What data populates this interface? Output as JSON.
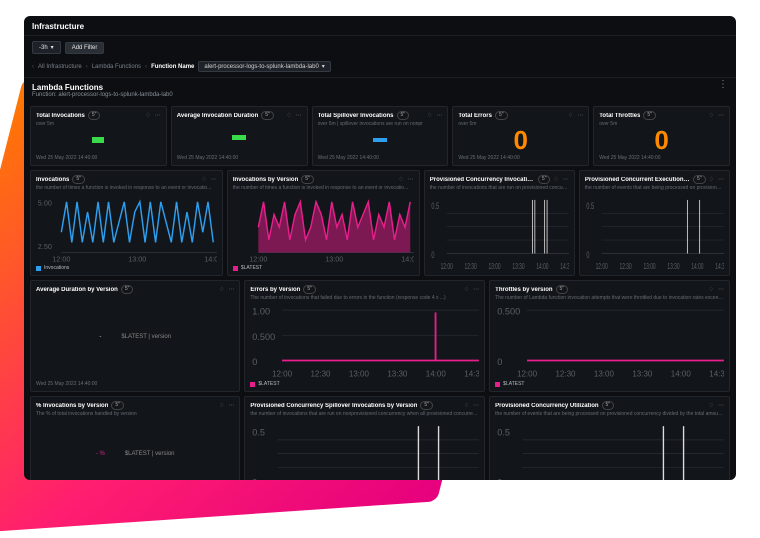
{
  "page": {
    "title": "Infrastructure",
    "time_range": "-3h",
    "add_filter": "Add Filter"
  },
  "breadcrumb": {
    "all": "All Infrastructure",
    "lambda": "Lambda Functions",
    "label": "Function Name",
    "value": "alert-processor-logs-to-splunk-lambda-lab0"
  },
  "header": {
    "title": "Lambda Functions",
    "subtitle": "Function: alert-processor-logs-to-splunk-lambda-lab0"
  },
  "timestamp": "Wed 25 May 2022 14:40:00",
  "colors": {
    "green": "#3adb4a",
    "blue": "#2e9fef",
    "magenta": "#e81e8c",
    "orange": "#ff8a00",
    "grid": "#2a2f36",
    "axis_text": "#5a6068"
  },
  "row1": [
    {
      "title": "Total Invocations",
      "pill": "5\"",
      "sub": "over 5m",
      "viz": "green-bar",
      "footer_ts": true
    },
    {
      "title": "Average Invocation Duration",
      "pill": "5\"",
      "sub": "",
      "viz": "green-bar2",
      "footer_ts": true
    },
    {
      "title": "Total Spillover Invocations",
      "pill": "5\"",
      "sub": "over 5m | spillover invocations are run on nonpr",
      "viz": "blue-bar",
      "footer_ts": true
    },
    {
      "title": "Total Errors",
      "pill": "5\"",
      "sub": "over 5m",
      "viz": "bignum",
      "value": "0",
      "color": "#ff8a00",
      "footer_ts": true
    },
    {
      "title": "Total Throttles",
      "pill": "5\"",
      "sub": "over 5m",
      "viz": "bignum",
      "value": "0",
      "color": "#ff8a00",
      "footer_ts": true
    }
  ],
  "row2": {
    "left": {
      "title": "Invocations",
      "pill": "5\"",
      "sub": "the number of times a function is invoked in response to an event or invocatio...",
      "type": "line",
      "y_ticks": [
        "5.00",
        "2.50"
      ],
      "x_ticks": [
        "12:00",
        "13:00",
        "14:00"
      ],
      "series_color": "#2e9fef",
      "legend": "Invocations",
      "points": [
        2,
        5,
        1,
        5,
        1,
        4,
        1,
        5,
        1,
        5,
        1,
        3,
        5,
        1,
        4,
        5,
        1,
        5,
        1,
        5,
        3,
        1,
        5,
        1,
        4,
        1,
        5,
        2,
        5,
        1
      ],
      "footer_ts": true
    },
    "midleft": {
      "title": "Invocations by Version",
      "pill": "5\"",
      "sub": "the number of times a function is invoked in response to an event or invocatio...",
      "type": "area",
      "x_ticks": [
        "12:00",
        "13:00",
        "14:00"
      ],
      "series_color": "#e81e8c",
      "legend": "$LATEST",
      "points": [
        2,
        4,
        1,
        3,
        2,
        4,
        1,
        3,
        4,
        1,
        2,
        4,
        3,
        1,
        4,
        2,
        3,
        1,
        4,
        2,
        3,
        4,
        1,
        3,
        2,
        4,
        1,
        3,
        2,
        4
      ],
      "footer_ts": true
    },
    "mid": {
      "title": "Provisioned Concurrency Invocations by Version",
      "pill": "5\"",
      "sub": "the number of invocations that are run on provisioned concurrency lambda f...",
      "type": "sparse",
      "y_ticks": [
        "0.5",
        "0"
      ],
      "x_ticks": [
        "12:00",
        "12:30",
        "13:00",
        "13:30",
        "14:00",
        "14:30"
      ],
      "spikes": [
        70,
        72,
        80,
        82
      ],
      "footer_ts": false
    },
    "right": {
      "title": "Provisioned Concurrent Executions by Version",
      "pill": "5\"",
      "sub": "the number of events that are being processed on provisioned concurrency d...",
      "type": "sparse",
      "y_ticks": [
        "0.5",
        "0"
      ],
      "x_ticks": [
        "12:00",
        "12:30",
        "13:00",
        "13:30",
        "14:00",
        "14:30"
      ],
      "spikes": [
        70,
        80
      ],
      "footer_ts": false
    }
  },
  "row3": {
    "left": {
      "title": "Average Duration by Version",
      "pill": "5\"",
      "viz": "text",
      "value": "-",
      "legend": "$LATEST | version",
      "footer_ts": true
    },
    "mid": {
      "title": "Errors by Version",
      "pill": "5\"",
      "sub": "The number of invocations that failed due to errors in the function (response code 4 x ...)",
      "type": "flat-with-spike",
      "y_ticks": [
        "1.00",
        "0.500",
        "0"
      ],
      "x_ticks": [
        "12:00",
        "12:30",
        "13:00",
        "13:30",
        "14:00",
        "14:30"
      ],
      "series_color": "#e81e8c",
      "legend": "$LATEST",
      "spike_x": 78
    },
    "right": {
      "title": "Throttles by version",
      "pill": "5\"",
      "sub": "The number of Lambda function invocation attempts that were throttled due to invocation rates exceeding",
      "type": "flat",
      "y_ticks": [
        "0.500",
        "0"
      ],
      "x_ticks": [
        "12:00",
        "12:30",
        "13:00",
        "13:30",
        "14:00",
        "14:30"
      ],
      "series_color": "#e81e8c",
      "legend": "$LATEST"
    }
  },
  "row4": {
    "left": {
      "title": "% Invocations by Version",
      "pill": "5\"",
      "sub": "The % of total invocations handled by version",
      "viz": "text",
      "value": "- %",
      "value_color": "#e81e8c",
      "legend": "$LATEST | version",
      "footer_ts": true
    },
    "mid": {
      "title": "Provisioned Concurrency Spillover Invocations by Version",
      "pill": "5\"",
      "sub": "the number of invocations that are run on nonprovisioned concurrency when all provisioned concurrency i...",
      "type": "sparse",
      "y_ticks": [
        "0.5",
        "0"
      ],
      "x_ticks": [
        "12:00",
        "12:30",
        "13:00",
        "13:30",
        "14:00",
        "14:30"
      ],
      "spikes": [
        70,
        80
      ]
    },
    "right": {
      "title": "Provisioned Concurrency Utilization",
      "pill": "5\"",
      "sub": "the number of events that are being processed on provisioned concurrency divided by the total amount of...",
      "type": "sparse",
      "y_ticks": [
        "0.5",
        "0"
      ],
      "x_ticks": [
        "12:00",
        "12:30",
        "13:00",
        "13:30",
        "14:00",
        "14:30"
      ],
      "spikes": [
        70,
        80
      ]
    }
  }
}
